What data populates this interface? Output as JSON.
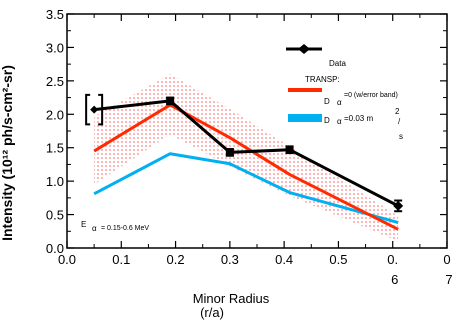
{
  "chart_data": {
    "type": "line",
    "ylabel": "Intensity (10¹² ph/s-cm²-sr)",
    "xlabel_line1": "Minor Radius",
    "xlabel_line2": "(r/a)",
    "xlim": [
      0.0,
      0.7
    ],
    "ylim": [
      0.0,
      3.5
    ],
    "xticks": [
      {
        "v": 0.0,
        "l1": "0.0",
        "l2": ""
      },
      {
        "v": 0.1,
        "l1": "0.1",
        "l2": ""
      },
      {
        "v": 0.2,
        "l1": "0.2",
        "l2": ""
      },
      {
        "v": 0.3,
        "l1": "0.3",
        "l2": ""
      },
      {
        "v": 0.4,
        "l1": "0.4",
        "l2": ""
      },
      {
        "v": 0.5,
        "l1": "0.5",
        "l2": ""
      },
      {
        "v": 0.6,
        "l1": "0.",
        "l2": "6"
      },
      {
        "v": 0.7,
        "l1": "0",
        "l2": "7"
      }
    ],
    "yticks": [
      "0.0",
      "0.5",
      "1.0",
      "1.5",
      "2.0",
      "2.5",
      "3.0",
      "3.5"
    ],
    "ytick_values": [
      0.0,
      0.5,
      1.0,
      1.5,
      2.0,
      2.5,
      3.0,
      3.5
    ],
    "legend": {
      "data_label": "Data",
      "transp_label": "TRANSP:",
      "red_label_a": "D",
      "red_label_sub": "α",
      "red_label_b": "=0 (w/error band)",
      "blue_label_a": "D",
      "blue_label_sub": "α",
      "blue_label_b": "=0.03 m",
      "blue_label_sup": "2",
      "blue_label_slash": "/",
      "blue_label_s": "s"
    },
    "annotation": {
      "a": "E",
      "sub": "α",
      "b": "= 0.15-0.6 MeV"
    },
    "series": [
      {
        "name": "Data",
        "color": "#000000",
        "x": [
          0.05,
          0.19,
          0.3,
          0.41,
          0.61
        ],
        "y": [
          2.07,
          2.2,
          1.43,
          1.47,
          0.63
        ],
        "err": [
          0.22,
          0.05,
          0.05,
          0.05,
          0.08
        ]
      },
      {
        "name": "Dα=0 (w/error band)",
        "color": "#ff2a00",
        "x": [
          0.05,
          0.19,
          0.3,
          0.41,
          0.61
        ],
        "y": [
          1.45,
          2.14,
          1.65,
          1.1,
          0.28
        ],
        "band_upper": [
          1.97,
          2.6,
          2.08,
          1.52,
          0.48
        ],
        "band_lower": [
          0.95,
          1.7,
          1.22,
          0.78,
          0.1
        ]
      },
      {
        "name": "Dα=0.03 m²/s",
        "color": "#00b0f0",
        "x": [
          0.05,
          0.19,
          0.3,
          0.41,
          0.61
        ],
        "y": [
          0.81,
          1.41,
          1.26,
          0.83,
          0.38
        ]
      }
    ],
    "band_color": "#ff9f9f"
  }
}
